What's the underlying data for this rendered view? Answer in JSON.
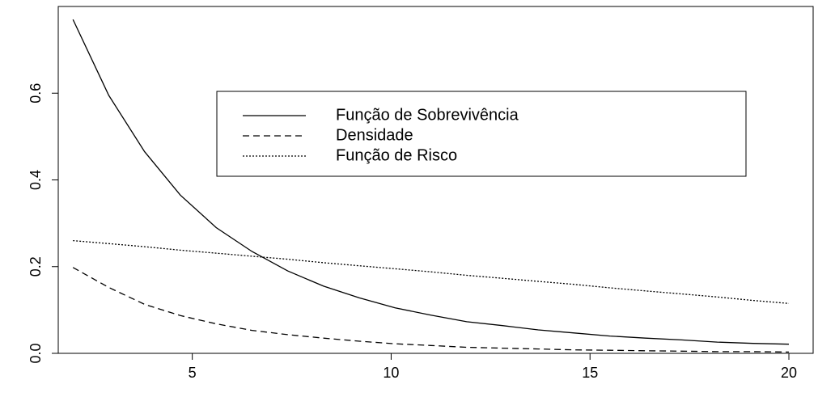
{
  "chart_data": {
    "type": "line",
    "x": [
      2,
      2.9,
      3.8,
      4.7,
      5.6,
      6.5,
      7.4,
      8.3,
      9.2,
      10.1,
      11,
      11.9,
      12.8,
      13.7,
      14.6,
      15.5,
      16.4,
      17.3,
      18.2,
      19.1,
      20
    ],
    "series": [
      {
        "name": "Função de Sobrevivência",
        "color": "#000000",
        "linestyle": "solid",
        "values": [
          0.77,
          0.595,
          0.465,
          0.365,
          0.29,
          0.235,
          0.19,
          0.155,
          0.128,
          0.105,
          0.088,
          0.073,
          0.064,
          0.054,
          0.047,
          0.04,
          0.035,
          0.031,
          0.026,
          0.023,
          0.021
        ]
      },
      {
        "name": "Densidade",
        "color": "#000000",
        "linestyle": "dashed",
        "values": [
          0.198,
          0.152,
          0.113,
          0.087,
          0.068,
          0.053,
          0.043,
          0.035,
          0.028,
          0.022,
          0.018,
          0.014,
          0.012,
          0.01,
          0.008,
          0.007,
          0.006,
          0.005,
          0.004,
          0.004,
          0.003
        ]
      },
      {
        "name": "Função de Risco",
        "color": "#000000",
        "linestyle": "dotted",
        "values": [
          0.26,
          0.253,
          0.246,
          0.238,
          0.231,
          0.224,
          0.217,
          0.209,
          0.202,
          0.195,
          0.188,
          0.18,
          0.173,
          0.166,
          0.159,
          0.151,
          0.144,
          0.137,
          0.13,
          0.122,
          0.115
        ]
      }
    ],
    "xlim": [
      1.63,
      20.61
    ],
    "xticks": [
      5,
      10,
      15,
      20
    ],
    "ylim": [
      0,
      0.8
    ],
    "yticks": [
      {
        "value": 0,
        "label": "0.0"
      },
      0.2,
      0.4,
      0.6
    ],
    "legend": "top-center"
  }
}
